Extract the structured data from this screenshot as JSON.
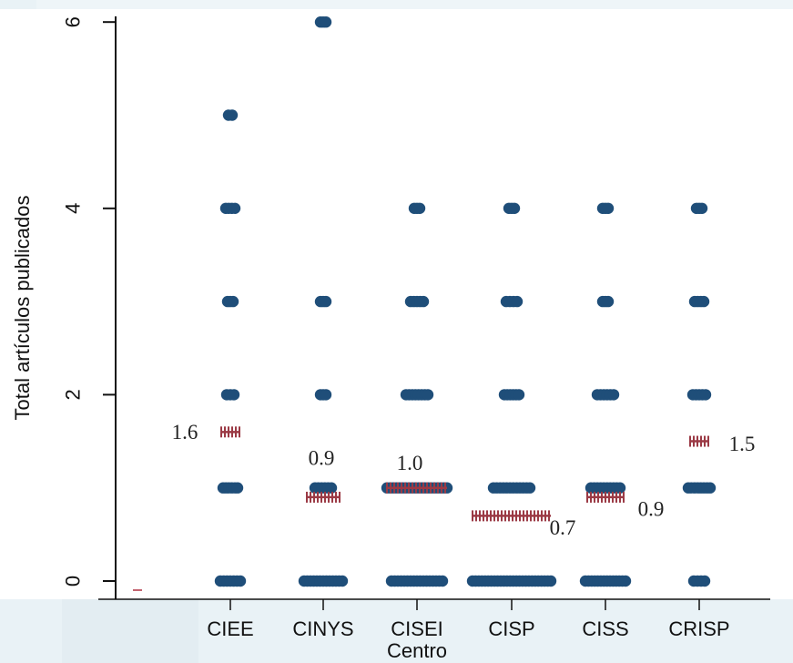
{
  "chart_data": {
    "type": "scatter",
    "title": "",
    "xlabel": "Centro",
    "ylabel": "Total artículos publicados",
    "ylim": [
      0,
      6
    ],
    "yticks": [
      "0",
      "2",
      "4",
      "6"
    ],
    "categories": [
      "CIEE",
      "CINYS",
      "CISEI",
      "CISP",
      "CISS",
      "CRISP"
    ],
    "series": [
      {
        "values": [
          [
            0,
            1,
            2,
            3,
            4,
            5
          ],
          [
            0,
            1,
            2,
            3,
            6
          ],
          [
            0,
            1,
            2,
            3,
            4
          ],
          [
            0,
            1,
            2,
            3,
            4
          ],
          [
            0,
            1,
            2,
            3,
            4
          ],
          [
            0,
            1,
            2,
            3,
            4
          ]
        ]
      },
      {
        "values": [
          1.6,
          0.9,
          1.0,
          0.7,
          0.9,
          1.5
        ],
        "labels": [
          "1.6",
          "0.9",
          "1.0",
          "0.7",
          "0.9",
          "1.5"
        ]
      }
    ],
    "grid": false,
    "legend": "none",
    "colors": {
      "points": "#1f4e79",
      "means": "#9b3a45"
    }
  }
}
